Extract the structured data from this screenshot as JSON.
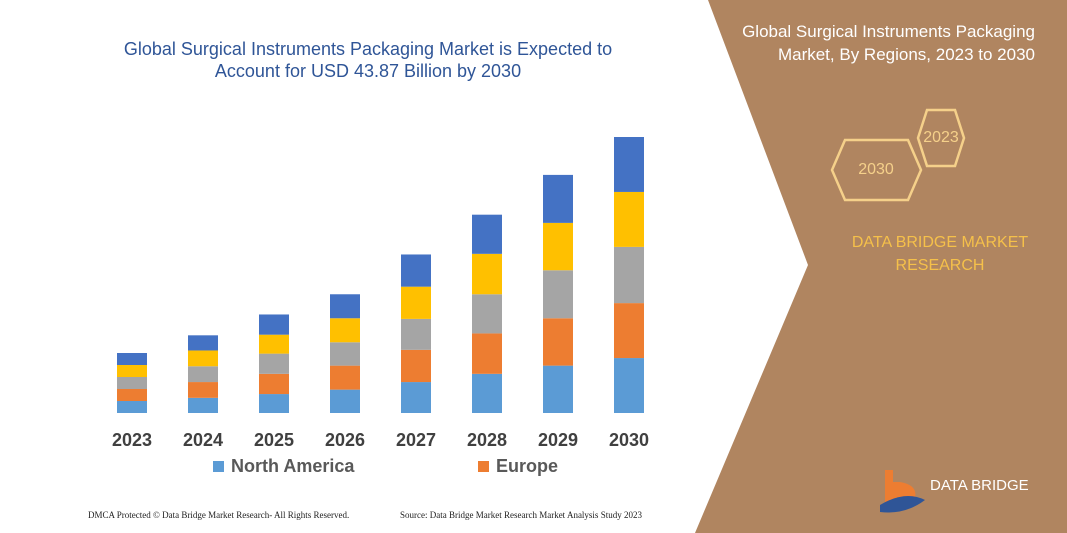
{
  "chart_data": {
    "type": "bar",
    "stacked": true,
    "title": "Global Surgical Instruments Packaging Market is Expected to Account for USD 43.87 Billion by 2030",
    "categories": [
      "2023",
      "2024",
      "2025",
      "2026",
      "2027",
      "2028",
      "2029",
      "2030"
    ],
    "series": [
      {
        "name": "North America",
        "color": "#5b9bd5",
        "values": [
          1.9,
          2.4,
          3.0,
          3.7,
          4.9,
          6.2,
          7.5,
          8.7
        ]
      },
      {
        "name": "Europe",
        "color": "#ed7d31",
        "values": [
          1.9,
          2.5,
          3.2,
          3.8,
          5.1,
          6.4,
          7.5,
          8.7
        ]
      },
      {
        "color": "#a5a5a5",
        "values": [
          1.9,
          2.5,
          3.2,
          3.7,
          4.9,
          6.2,
          7.6,
          8.9
        ]
      },
      {
        "color": "#ffc000",
        "values": [
          1.9,
          2.5,
          3.0,
          3.8,
          5.1,
          6.4,
          7.5,
          8.7
        ]
      },
      {
        "color": "#4472c4",
        "values": [
          1.9,
          2.4,
          3.2,
          3.8,
          5.1,
          6.2,
          7.6,
          8.7
        ]
      }
    ]
  },
  "panel": {
    "title": "Global Surgical Instruments Packaging Market, By Regions, 2023 to 2030",
    "hexagons": [
      "2023",
      "2030"
    ],
    "brand": "DATA BRIDGE MARKET RESEARCH",
    "logo": "DATA BRIDGE"
  },
  "footer": {
    "left": "DMCA Protected © Data Bridge Market Research- All Rights Reserved.",
    "right": "Source: Data Bridge Market Research Market Analysis Study 2023"
  }
}
